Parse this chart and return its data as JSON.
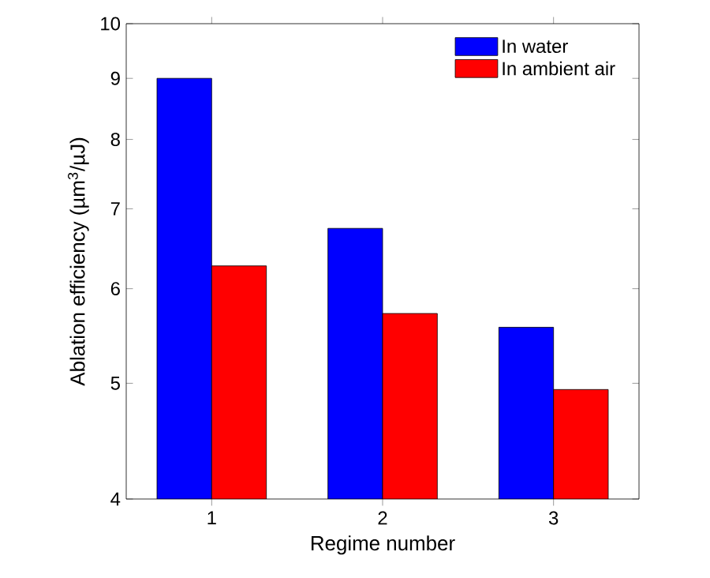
{
  "chart_data": {
    "type": "bar",
    "xlabel": "Regime number",
    "ylabel": "Ablation efficiency (µm$^{3}$/µJ)",
    "categories": [
      "1",
      "2",
      "3"
    ],
    "series": [
      {
        "name": "In water",
        "color": "#0000ff",
        "values": [
          9.0,
          6.74,
          5.57
        ]
      },
      {
        "name": "In ambient air",
        "color": "#ff0000",
        "values": [
          6.27,
          5.72,
          4.94
        ]
      }
    ],
    "log": "y",
    "ylim": [
      4,
      10
    ],
    "yticks": [
      4,
      5,
      6,
      7,
      8,
      9,
      10
    ],
    "legend": "top right",
    "grid": false
  }
}
